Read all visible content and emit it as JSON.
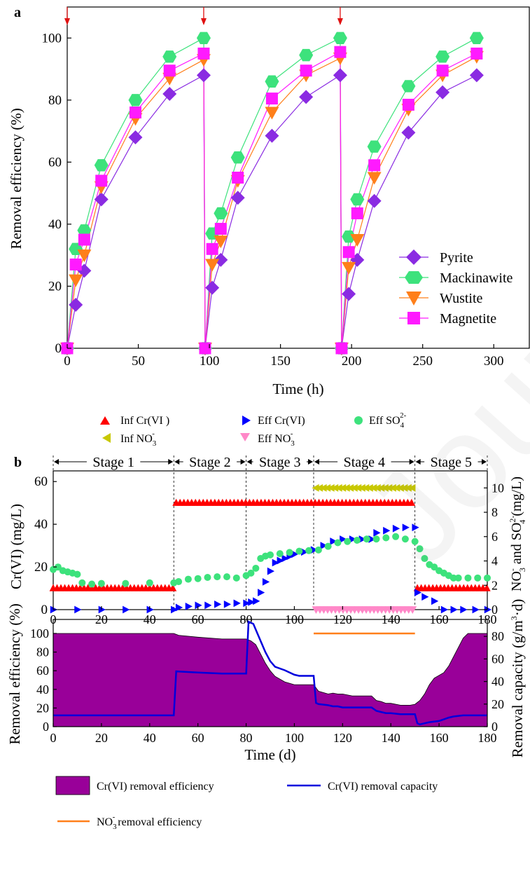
{
  "figure": {
    "watermark": "Journal Pre-proof"
  },
  "chart_data": [
    {
      "panel": "a",
      "type": "line",
      "xlabel": "Time (h)",
      "ylabel": "Removal efficiency (%)",
      "xlim": [
        0,
        325
      ],
      "ylim": [
        0,
        110
      ],
      "x_ticks": [
        0,
        50,
        100,
        150,
        200,
        250,
        300
      ],
      "y_ticks": [
        0,
        20,
        40,
        60,
        80,
        100
      ],
      "arrows_at_x": [
        0,
        96,
        192
      ],
      "legend_position": "bottom-right",
      "series": [
        {
          "name": "Pyrite",
          "color": "#8a2be2",
          "marker": "diamond",
          "x": [
            0,
            6,
            12,
            24,
            48,
            72,
            96,
            97,
            102,
            108,
            120,
            144,
            168,
            192,
            193,
            198,
            204,
            216,
            240,
            264,
            288
          ],
          "y": [
            0,
            14,
            25,
            48,
            68,
            82,
            88,
            0,
            19.5,
            28.5,
            48.5,
            68.5,
            81,
            88,
            0,
            17.5,
            28.5,
            47.5,
            69.5,
            82.5,
            88
          ]
        },
        {
          "name": "Mackinawite",
          "color": "#3de27c",
          "marker": "hexagon",
          "x": [
            0,
            6,
            12,
            24,
            48,
            72,
            96,
            97,
            102,
            108,
            120,
            144,
            168,
            192,
            193,
            198,
            204,
            216,
            240,
            264,
            288
          ],
          "y": [
            0,
            32,
            38,
            59,
            80,
            94,
            100,
            0,
            37,
            43.5,
            61.5,
            86,
            94.5,
            100,
            0,
            36,
            48,
            65,
            84.5,
            94,
            100
          ]
        },
        {
          "name": "Wustite",
          "color": "#ff7f1a",
          "marker": "triangle-down",
          "x": [
            0,
            6,
            12,
            24,
            48,
            72,
            96,
            97,
            102,
            108,
            120,
            144,
            168,
            192,
            193,
            198,
            204,
            216,
            240,
            264,
            288
          ],
          "y": [
            0,
            22,
            30,
            52,
            74,
            87,
            93,
            0,
            27,
            34.5,
            54,
            76,
            88,
            93.5,
            0,
            26,
            35,
            55,
            77,
            88,
            94
          ]
        },
        {
          "name": "Magnetite",
          "color": "#ff1aff",
          "marker": "square",
          "x": [
            0,
            6,
            12,
            24,
            48,
            72,
            96,
            97,
            102,
            108,
            120,
            144,
            168,
            192,
            193,
            198,
            204,
            216,
            240,
            264,
            288
          ],
          "y": [
            0,
            27,
            35,
            54,
            76,
            89.5,
            95,
            0,
            32,
            38.5,
            55,
            80.5,
            89.5,
            95.5,
            0,
            31,
            43.5,
            59,
            78.5,
            89.5,
            95
          ]
        }
      ]
    },
    {
      "panel": "b-top",
      "type": "scatter",
      "xlim": [
        0,
        180
      ],
      "ylim_left": [
        0,
        65
      ],
      "ylim_right": [
        0,
        11.4
      ],
      "x_ticks": [
        0,
        20,
        40,
        60,
        80,
        100,
        120,
        140,
        160,
        180
      ],
      "y_ticks_left": [
        0,
        20,
        40,
        60
      ],
      "y_ticks_right": [
        0,
        2,
        4,
        6,
        8,
        10
      ],
      "stages": [
        {
          "label": "Stage 1",
          "start": 0,
          "end": 50
        },
        {
          "label": "Stage 2",
          "start": 50,
          "end": 80
        },
        {
          "label": "Stage 3",
          "start": 80,
          "end": 108
        },
        {
          "label": "Stage 4",
          "start": 108,
          "end": 150
        },
        {
          "label": "Stage 5",
          "start": 150,
          "end": 180
        }
      ],
      "series": [
        {
          "name": "Inf Cr(VI )",
          "axis": "left",
          "color": "#ff0000",
          "marker": "triangle-up",
          "segments": [
            {
              "x_start": 0,
              "x_end": 50,
              "value": 10
            },
            {
              "x_start": 51,
              "x_end": 150,
              "value": 50
            },
            {
              "x_start": 151,
              "x_end": 180,
              "value": 10
            }
          ]
        },
        {
          "name": "Inf NO3-",
          "axis": "right",
          "color": "#c8c800",
          "marker": "triangle-left",
          "segments": [
            {
              "x_start": 109,
              "x_end": 150,
              "value": 10
            }
          ]
        },
        {
          "name": "Eff Cr(VI)",
          "axis": "left",
          "color": "#0000ff",
          "marker": "triangle-right",
          "x": [
            0,
            10,
            20,
            30,
            40,
            50,
            52,
            56,
            60,
            64,
            68,
            72,
            76,
            80,
            82,
            84,
            86,
            88,
            90,
            92,
            94,
            96,
            98,
            100,
            104,
            108,
            112,
            116,
            120,
            124,
            128,
            132,
            134,
            138,
            142,
            146,
            150,
            151,
            154,
            158,
            162,
            166,
            170,
            175,
            180
          ],
          "y": [
            0,
            0,
            0,
            0,
            0,
            0,
            1,
            1.5,
            2,
            2,
            2.5,
            2.5,
            3,
            3,
            3.5,
            4,
            8,
            13,
            18,
            22,
            23,
            24,
            25,
            26,
            27,
            28,
            30,
            32,
            33,
            33,
            33,
            33,
            36,
            37,
            38,
            38.5,
            38.5,
            8,
            6,
            4,
            0,
            0,
            0,
            0,
            0
          ]
        },
        {
          "name": "Eff NO3-",
          "axis": "right",
          "color": "#ff88c8",
          "marker": "triangle-down",
          "segments": [
            {
              "x_start": 109,
              "x_end": 150,
              "value": 0
            }
          ]
        },
        {
          "name": "Eff SO42-",
          "axis": "right",
          "color": "#3de27c",
          "marker": "circle",
          "x": [
            0,
            2,
            4,
            6,
            8,
            10,
            12,
            16,
            20,
            30,
            40,
            50,
            52,
            56,
            60,
            64,
            68,
            72,
            76,
            80,
            82,
            84,
            86,
            88,
            90,
            94,
            98,
            102,
            106,
            110,
            114,
            118,
            122,
            126,
            130,
            134,
            138,
            142,
            146,
            150,
            152,
            154,
            156,
            158,
            160,
            162,
            164,
            166,
            168,
            172,
            176,
            180
          ],
          "y": [
            3.3,
            3.5,
            3.2,
            3.1,
            3.0,
            2.9,
            2.2,
            2.1,
            2.15,
            2.15,
            2.2,
            2.2,
            2.3,
            2.5,
            2.55,
            2.65,
            2.7,
            2.7,
            2.6,
            2.8,
            3.0,
            3.4,
            4.2,
            4.4,
            4.5,
            4.6,
            4.7,
            4.8,
            4.85,
            4.9,
            5.2,
            5.5,
            5.6,
            5.7,
            5.8,
            5.8,
            5.9,
            6.0,
            5.8,
            5.6,
            5.0,
            4.2,
            3.7,
            3.5,
            3.2,
            3.0,
            2.8,
            2.6,
            2.6,
            2.6,
            2.6,
            2.6
          ]
        }
      ],
      "legend_labels": {
        "inf_cr": "Inf Cr(VI )",
        "eff_cr": "Eff Cr(VI)",
        "eff_so4": "Eff SO",
        "so4_sub": "4",
        "so4_sup": "2-",
        "inf_no3": "Inf NO",
        "no3_sub": "3",
        "no3_sup": "-",
        "eff_no3": "Eff NO"
      },
      "ylabel_left": "Cr(VI) (mg/L)",
      "ylabel_right_parts": [
        "NO",
        "-",
        "3",
        " and SO",
        "2-",
        "4",
        " (mg/L)"
      ]
    },
    {
      "panel": "b-bottom",
      "type": "area",
      "xlabel": "Time (d)",
      "ylabel_left": "Removal efficiency (%)",
      "ylabel_right_parts": [
        "Removal capacity (g/m",
        "3",
        "·d)"
      ],
      "xlim": [
        0,
        180
      ],
      "ylim_left": [
        0,
        115
      ],
      "ylim_right": [
        0,
        95
      ],
      "x_ticks": [
        0,
        20,
        40,
        60,
        80,
        100,
        120,
        140,
        160,
        180
      ],
      "y_ticks_left": [
        0,
        20,
        40,
        60,
        80,
        100
      ],
      "y_ticks_right": [
        0,
        20,
        40,
        60,
        80
      ],
      "series": [
        {
          "name": "Cr(VI) removal efficiency",
          "axis": "left",
          "color": "#990099",
          "type": "area",
          "x": [
            0,
            50,
            52,
            60,
            70,
            80,
            82,
            84,
            86,
            88,
            90,
            92,
            96,
            100,
            104,
            108,
            110,
            114,
            116,
            118,
            120,
            124,
            128,
            132,
            134,
            136,
            138,
            140,
            144,
            148,
            150,
            152,
            154,
            156,
            158,
            160,
            162,
            164,
            166,
            168,
            170,
            172,
            176,
            180
          ],
          "y": [
            100,
            100,
            98,
            96,
            94,
            94,
            92,
            88,
            78,
            68,
            60,
            54,
            48,
            45,
            45,
            45,
            38,
            35,
            36,
            35,
            35,
            33,
            33,
            33,
            28,
            27,
            25,
            25,
            23,
            23,
            24,
            28,
            35,
            45,
            52,
            55,
            58,
            65,
            75,
            85,
            95,
            100,
            100,
            100
          ]
        },
        {
          "name": "Cr(VI) removal capacity",
          "axis": "right",
          "color": "#0000dd",
          "type": "line",
          "x": [
            0,
            50,
            51,
            60,
            70,
            80,
            81,
            83,
            84,
            86,
            88,
            90,
            92,
            96,
            100,
            102,
            108,
            109,
            110,
            114,
            116,
            118,
            120,
            124,
            128,
            132,
            134,
            136,
            138,
            140,
            144,
            148,
            150,
            151,
            152,
            154,
            156,
            160,
            164,
            166,
            170,
            175,
            180
          ],
          "y": [
            10,
            10,
            49,
            48,
            47,
            47,
            93,
            91,
            86,
            76,
            66,
            58,
            53,
            50,
            46,
            45,
            45,
            21,
            20,
            19,
            18,
            18,
            17,
            17,
            17,
            17,
            14,
            13,
            12,
            12,
            11,
            11,
            11,
            3,
            2,
            3,
            4,
            5,
            8,
            9,
            10,
            10,
            10
          ]
        },
        {
          "name": "NO3- removal efficiency",
          "axis": "left",
          "color": "#ff7f1a",
          "type": "line",
          "x": [
            108,
            150
          ],
          "y": [
            100,
            100
          ]
        }
      ],
      "legend_labels": {
        "cr_eff": "Cr(VI) removal efficiency",
        "cr_cap": "Cr(VI) removal capacity",
        "no3_pre": "NO",
        "no3_sub": "3",
        "no3_sup": "-",
        "no3_post": " removal efficiency"
      }
    }
  ]
}
